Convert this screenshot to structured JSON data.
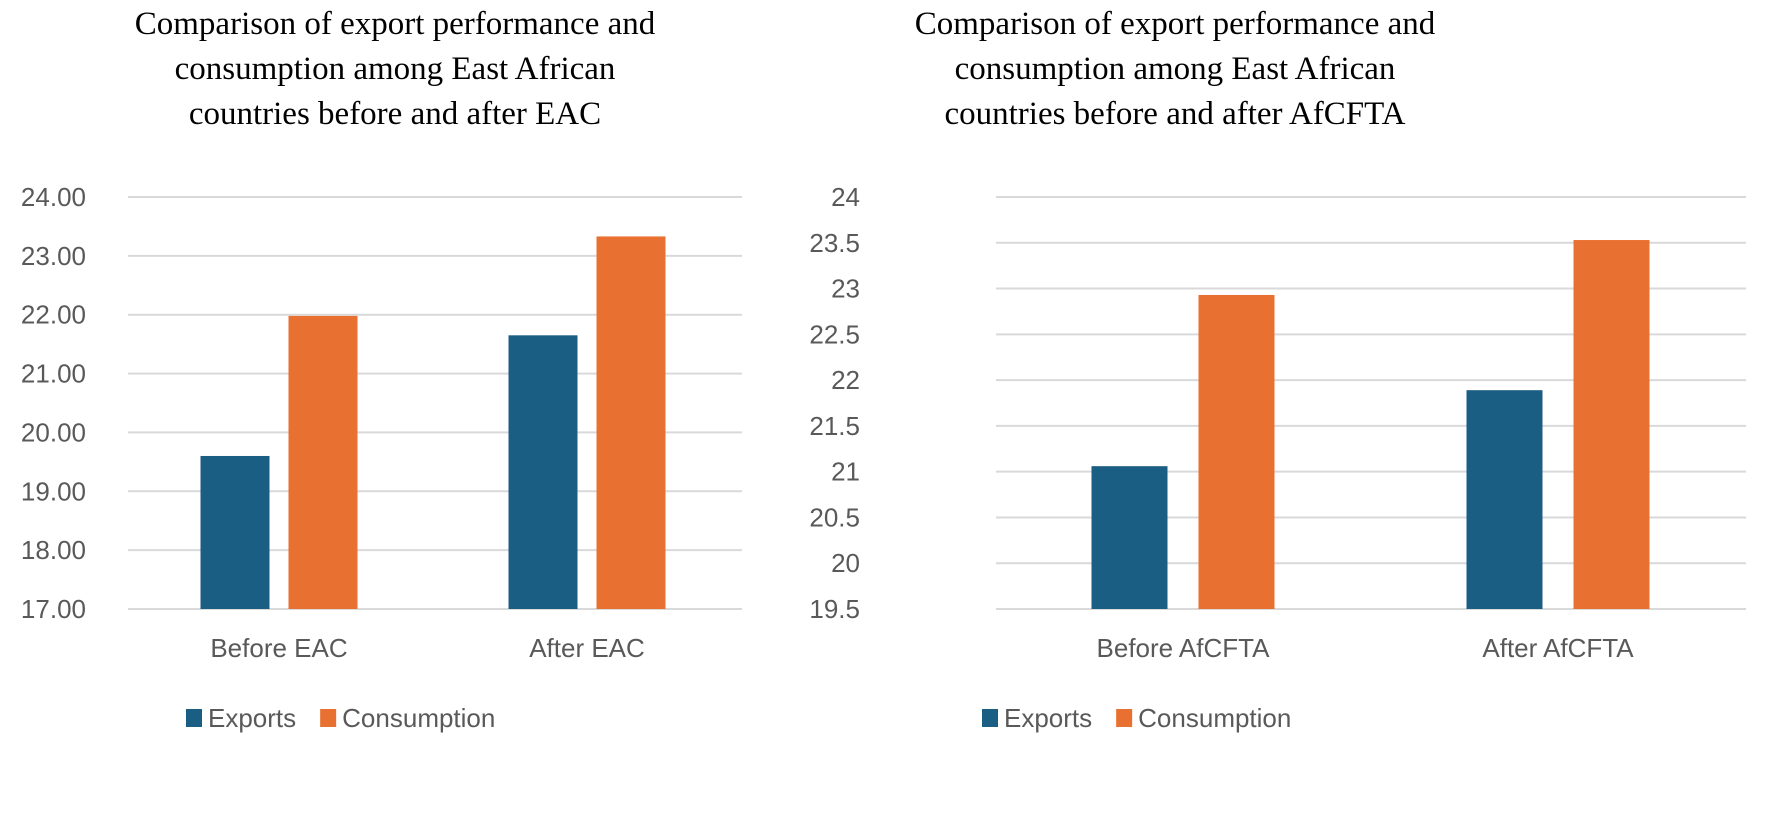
{
  "colors": {
    "exports": "#1b5e83",
    "consumption": "#e87131",
    "grid": "#d9d9d9",
    "text": "#595959"
  },
  "chart_data": [
    {
      "type": "bar",
      "title": "Comparison of export performance and\nconsumption among East African\ncountries before and after EAC",
      "categories": [
        "Before EAC",
        "After EAC"
      ],
      "series": [
        {
          "name": "Exports",
          "values": [
            19.6,
            21.65
          ]
        },
        {
          "name": "Consumption",
          "values": [
            21.98,
            23.33
          ]
        }
      ],
      "xlabel": "",
      "ylabel": "",
      "ylim": [
        17,
        24
      ],
      "yticks": [
        "17.00",
        "18.00",
        "19.00",
        "20.00",
        "21.00",
        "22.00",
        "23.00",
        "24.00"
      ],
      "grid": true,
      "legend": "bottom"
    },
    {
      "type": "bar",
      "title": "Comparison of export performance and\nconsumption among East African\ncountries before and after AfCFTA",
      "categories": [
        "Before AfCFTA",
        "After AfCFTA"
      ],
      "series": [
        {
          "name": "Exports",
          "values": [
            21.06,
            21.89
          ]
        },
        {
          "name": "Consumption",
          "values": [
            22.93,
            23.53
          ]
        }
      ],
      "xlabel": "",
      "ylabel": "",
      "ylim": [
        19.5,
        24
      ],
      "yticks": [
        "19.5",
        "20",
        "20.5",
        "21",
        "21.5",
        "22",
        "22.5",
        "23",
        "23.5",
        "24"
      ],
      "grid": true,
      "legend": "bottom"
    }
  ]
}
